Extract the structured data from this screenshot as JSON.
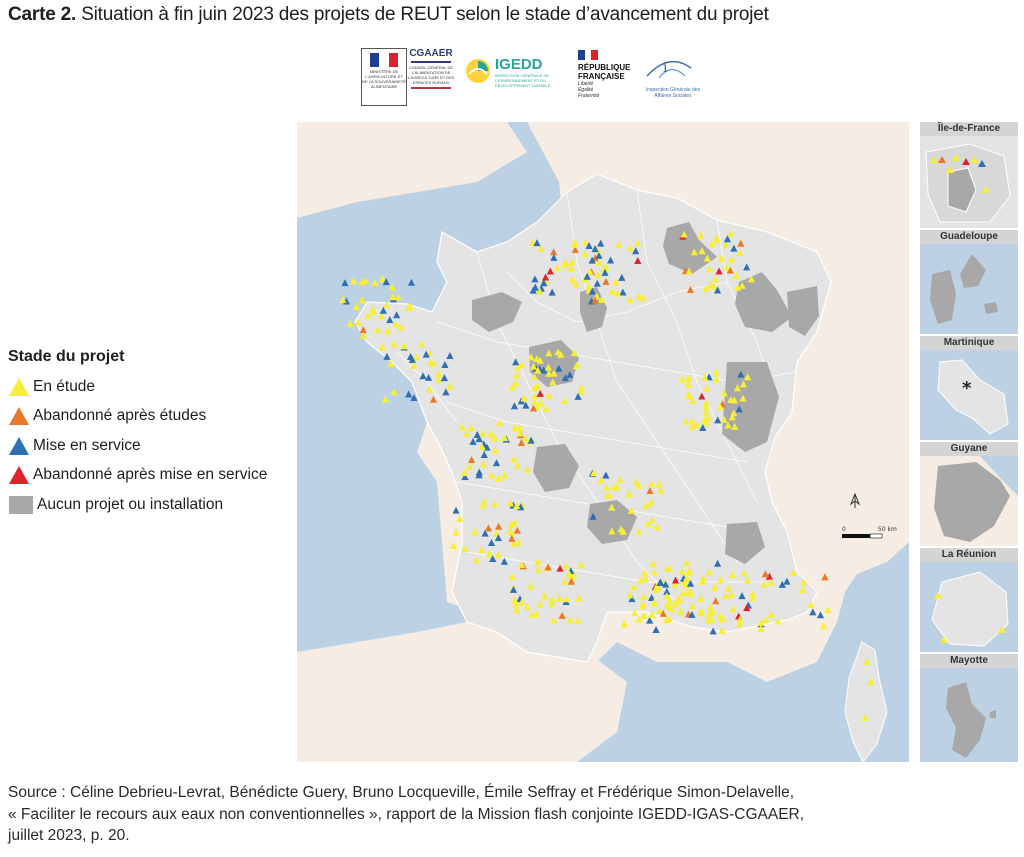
{
  "title": {
    "lead": "Carte 2.",
    "rest": " Situation à fin juin 2023 des projets de REUT selon le stade d’avancement du projet"
  },
  "logos": {
    "ministere": "MINISTÈRE DE L'AGRICULTURE ET DE LA SOUVERAINETÉ ALIMENTAIRE",
    "cgaaer": "CGAAER",
    "cgaaer_sub": "CONSEIL GÉNÉRAL DE L'ALIMENTATION DE L'AGRICULTURE ET DES ESPACES RURAUX",
    "igedd": "IGEDD",
    "igedd_sub": "INSPECTION GÉNÉRALE DE L'ENVIRONNEMENT ET DU DÉVELOPPEMENT DURABLE",
    "rf_line1": "RÉPUBLIQUE",
    "rf_line2": "FRANÇAISE",
    "rf_motto": "Liberté Égalité Fraternité",
    "igas": "Inspection Générale des Affaires Sociales"
  },
  "legend": {
    "title": "Stade du projet",
    "items": [
      {
        "label": "En étude",
        "color": "#f7ef36",
        "shape": "triangle"
      },
      {
        "label": "Abandonné après études",
        "color": "#e8792b",
        "shape": "triangle"
      },
      {
        "label": "Mise en service",
        "color": "#2f6fb3",
        "shape": "triangle"
      },
      {
        "label": "Abandonné après mise en service",
        "color": "#e2222b",
        "shape": "triangle"
      },
      {
        "label": "Aucun projet ou installation",
        "color": "#a8a8a8",
        "shape": "square"
      }
    ]
  },
  "scale": {
    "zero": "0",
    "distance": "50 km"
  },
  "insets": [
    {
      "name": "Île-de-France"
    },
    {
      "name": "Guadeloupe"
    },
    {
      "name": "Martinique",
      "marker": "*"
    },
    {
      "name": "Guyane"
    },
    {
      "name": "La Réunion"
    },
    {
      "name": "Mayotte"
    }
  ],
  "colors": {
    "sea": "#bcd2e4",
    "land_other": "#f5ece4",
    "france": "#e4e4e4",
    "border": "#ffffff"
  },
  "source": {
    "line1": "Source : Céline Debrieu-Levrat, Bénédicte Guery, Bruno Locqueville, Émile Seffray et Frédérique Simon-Delavelle,",
    "line2": "« Faciliter le recours aux eaux non conventionnelles », rapport de la Mission flash conjointe IGEDD-IGAS-CGAAER,",
    "line3": "juillet 2023, p. 20."
  }
}
